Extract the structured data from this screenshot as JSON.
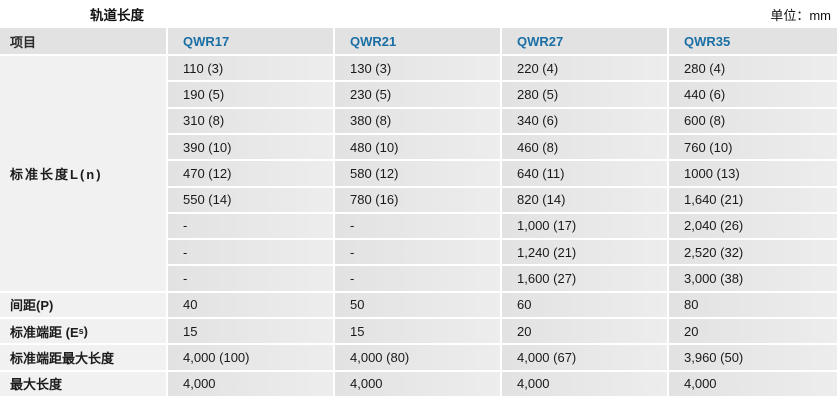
{
  "title": "轨道长度",
  "unit_label": "单位：mm",
  "table": {
    "item_header": "项目",
    "columns": [
      "QWR17",
      "QWR21",
      "QWR27",
      "QWR35"
    ],
    "standard_length": {
      "label": "标准长度L(n)",
      "rows": [
        [
          "110 (3)",
          "130 (3)",
          "220 (4)",
          "280 (4)"
        ],
        [
          "190 (5)",
          "230 (5)",
          "280 (5)",
          "440 (6)"
        ],
        [
          "310 (8)",
          "380 (8)",
          "340 (6)",
          "600 (8)"
        ],
        [
          "390 (10)",
          "480 (10)",
          "460 (8)",
          "760 (10)"
        ],
        [
          "470 (12)",
          "580 (12)",
          "640 (11)",
          "1000 (13)"
        ],
        [
          "550 (14)",
          "780 (16)",
          "820 (14)",
          "1,640 (21)"
        ],
        [
          "-",
          "-",
          "1,000 (17)",
          "2,040 (26)"
        ],
        [
          "-",
          "-",
          "1,240 (21)",
          "2,520 (32)"
        ],
        [
          "-",
          "-",
          "1,600 (27)",
          "3,000 (38)"
        ]
      ]
    },
    "simple_rows": [
      {
        "label": "间距(P)",
        "values": [
          "40",
          "50",
          "60",
          "80"
        ]
      },
      {
        "label_prefix": "标准端距 (E",
        "label_sub": "s",
        "label_suffix": ")",
        "values": [
          "15",
          "15",
          "20",
          "20"
        ]
      },
      {
        "label": "标准端距最大长度",
        "values": [
          "4,000 (100)",
          "4,000 (80)",
          "4,000 (67)",
          "3,960 (50)"
        ]
      },
      {
        "label": "最大长度",
        "values": [
          "4,000",
          "4,000",
          "4,000",
          "4,000"
        ]
      }
    ]
  }
}
